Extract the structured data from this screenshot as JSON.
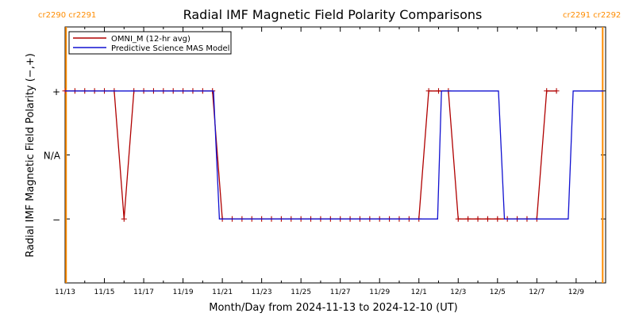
{
  "colors": {
    "omni": "#b00000",
    "model": "#1010d0",
    "carrington": "#ff8c00",
    "axis": "#000000"
  },
  "carrington_labels": {
    "left": "cr2290 cr2291",
    "right": "cr2291 cr2292"
  },
  "chart_data": {
    "type": "line",
    "title": "Radial IMF Magnetic Field Polarity Comparisons",
    "xlabel": "Month/Day from 2024-11-13 to 2024-12-10 (UT)",
    "ylabel": "Radial IMF Magnetic Field Polarity (−,+)",
    "x_unit": "days since 2024-11-13 00:00 UT",
    "xlim": [
      0,
      27.5
    ],
    "ylim": [
      -2,
      2
    ],
    "x_ticks": [
      {
        "x": 0,
        "label": "11/13"
      },
      {
        "x": 2,
        "label": "11/15"
      },
      {
        "x": 4,
        "label": "11/17"
      },
      {
        "x": 6,
        "label": "11/19"
      },
      {
        "x": 8,
        "label": "11/21"
      },
      {
        "x": 10,
        "label": "11/23"
      },
      {
        "x": 12,
        "label": "11/25"
      },
      {
        "x": 14,
        "label": "11/27"
      },
      {
        "x": 16,
        "label": "11/29"
      },
      {
        "x": 18,
        "label": "12/1"
      },
      {
        "x": 20,
        "label": "12/3"
      },
      {
        "x": 22,
        "label": "12/5"
      },
      {
        "x": 24,
        "label": "12/7"
      },
      {
        "x": 26,
        "label": "12/9"
      }
    ],
    "y_ticks": [
      {
        "y": 1,
        "label": "+"
      },
      {
        "y": 0,
        "label": "N/A"
      },
      {
        "y": -1,
        "label": "−"
      }
    ],
    "carrington_lines": [
      0.05,
      27.35
    ],
    "legend_position": "top-left",
    "series": [
      {
        "name": "OMNI_M (12-hr avg)",
        "markers": true,
        "points": [
          [
            0.0,
            1
          ],
          [
            0.5,
            1
          ],
          [
            1.0,
            1
          ],
          [
            1.5,
            1
          ],
          [
            2.0,
            1
          ],
          [
            2.5,
            1
          ],
          [
            3.0,
            -1
          ],
          [
            3.5,
            1
          ],
          [
            4.0,
            1
          ],
          [
            4.5,
            1
          ],
          [
            5.0,
            1
          ],
          [
            5.5,
            1
          ],
          [
            6.0,
            1
          ],
          [
            6.5,
            1
          ],
          [
            7.0,
            1
          ],
          [
            7.5,
            1
          ],
          [
            8.0,
            -1
          ],
          [
            8.5,
            -1
          ],
          [
            9.0,
            -1
          ],
          [
            9.5,
            -1
          ],
          [
            10.0,
            -1
          ],
          [
            10.5,
            -1
          ],
          [
            11.0,
            -1
          ],
          [
            11.5,
            -1
          ],
          [
            12.0,
            -1
          ],
          [
            12.5,
            -1
          ],
          [
            13.0,
            -1
          ],
          [
            13.5,
            -1
          ],
          [
            14.0,
            -1
          ],
          [
            14.5,
            -1
          ],
          [
            15.0,
            -1
          ],
          [
            15.5,
            -1
          ],
          [
            16.0,
            -1
          ],
          [
            16.5,
            -1
          ],
          [
            17.0,
            -1
          ],
          [
            17.5,
            -1
          ],
          [
            18.0,
            -1
          ],
          [
            18.5,
            1
          ],
          [
            19.0,
            1
          ],
          [
            19.5,
            1
          ],
          [
            20.0,
            -1
          ],
          [
            20.5,
            -1
          ],
          [
            21.0,
            -1
          ],
          [
            21.5,
            -1
          ],
          [
            22.0,
            -1
          ],
          [
            22.5,
            -1
          ],
          [
            23.0,
            -1
          ],
          [
            23.5,
            -1
          ],
          [
            24.0,
            -1
          ],
          [
            24.5,
            1
          ],
          [
            25.0,
            1
          ]
        ]
      },
      {
        "name": "Predictive Science MAS Model",
        "markers": false,
        "points": [
          [
            0.0,
            1
          ],
          [
            7.55,
            1
          ],
          [
            7.85,
            -1
          ],
          [
            18.95,
            -1
          ],
          [
            19.15,
            1
          ],
          [
            22.05,
            1
          ],
          [
            22.35,
            -1
          ],
          [
            25.6,
            -1
          ],
          [
            25.85,
            1
          ],
          [
            27.4,
            1
          ]
        ]
      }
    ]
  }
}
